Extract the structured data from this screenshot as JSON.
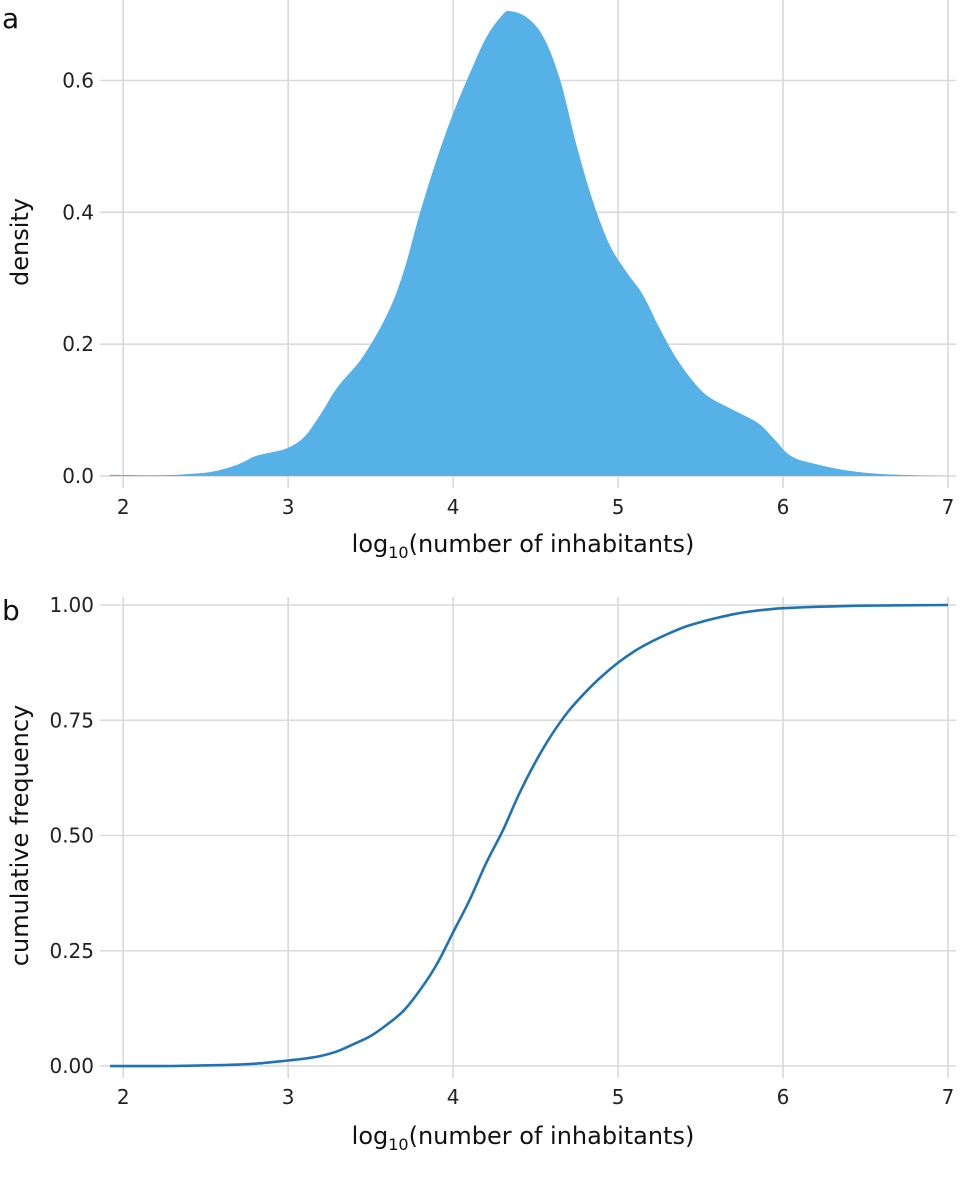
{
  "chart_data": [
    {
      "panel_label": "a",
      "type": "area",
      "xlabel_main": "log",
      "xlabel_sub": "10",
      "xlabel_rest": "(number of inhabitants)",
      "ylabel": "density",
      "xlim": [
        1.92,
        7.0
      ],
      "ylim": [
        0,
        0.71
      ],
      "x_ticks": [
        2,
        3,
        4,
        5,
        6,
        7
      ],
      "x_tick_labels": [
        "2",
        "3",
        "4",
        "5",
        "6",
        "7"
      ],
      "y_ticks": [
        0.0,
        0.2,
        0.4,
        0.6
      ],
      "y_tick_labels": [
        "0.0",
        "0.2",
        "0.4",
        "0.6"
      ],
      "grid": true,
      "fill_color": "#56B1E6",
      "x": [
        1.92,
        2.2,
        2.4,
        2.55,
        2.7,
        2.8,
        2.9,
        3.0,
        3.1,
        3.2,
        3.3,
        3.45,
        3.6,
        3.7,
        3.8,
        3.9,
        4.0,
        4.1,
        4.2,
        4.3,
        4.35,
        4.45,
        4.55,
        4.65,
        4.75,
        4.85,
        4.95,
        5.05,
        5.15,
        5.25,
        5.35,
        5.45,
        5.55,
        5.7,
        5.85,
        5.95,
        6.05,
        6.2,
        6.4,
        6.6,
        6.8,
        7.0
      ],
      "y": [
        0.002,
        0.001,
        0.003,
        0.007,
        0.018,
        0.03,
        0.036,
        0.043,
        0.06,
        0.095,
        0.135,
        0.18,
        0.245,
        0.31,
        0.4,
        0.48,
        0.55,
        0.61,
        0.665,
        0.7,
        0.705,
        0.695,
        0.665,
        0.6,
        0.5,
        0.415,
        0.35,
        0.31,
        0.275,
        0.225,
        0.18,
        0.145,
        0.12,
        0.1,
        0.08,
        0.055,
        0.03,
        0.018,
        0.008,
        0.003,
        0.001,
        0.0
      ]
    },
    {
      "panel_label": "b",
      "type": "line",
      "xlabel_main": "log",
      "xlabel_sub": "10",
      "xlabel_rest": "(number of inhabitants)",
      "ylabel": "cumulative frequency",
      "xlim": [
        1.92,
        7.0
      ],
      "ylim": [
        0,
        1.0
      ],
      "x_ticks": [
        2,
        3,
        4,
        5,
        6,
        7
      ],
      "x_tick_labels": [
        "2",
        "3",
        "4",
        "5",
        "6",
        "7"
      ],
      "y_ticks": [
        0.0,
        0.25,
        0.5,
        0.75,
        1.0
      ],
      "y_tick_labels": [
        "0.00",
        "0.25",
        "0.50",
        "0.75",
        "1.00"
      ],
      "grid": true,
      "line_color": "#1F72B3",
      "x": [
        1.92,
        2.3,
        2.6,
        2.8,
        3.0,
        3.1,
        3.2,
        3.3,
        3.4,
        3.5,
        3.6,
        3.7,
        3.8,
        3.9,
        4.0,
        4.1,
        4.2,
        4.3,
        4.4,
        4.5,
        4.6,
        4.7,
        4.8,
        4.9,
        5.0,
        5.1,
        5.2,
        5.3,
        5.4,
        5.5,
        5.6,
        5.7,
        5.8,
        5.9,
        6.0,
        6.2,
        6.4,
        6.6,
        7.0
      ],
      "y": [
        0.0,
        0.0,
        0.002,
        0.005,
        0.012,
        0.016,
        0.022,
        0.032,
        0.048,
        0.065,
        0.09,
        0.12,
        0.165,
        0.22,
        0.29,
        0.36,
        0.44,
        0.51,
        0.59,
        0.66,
        0.72,
        0.77,
        0.81,
        0.845,
        0.875,
        0.9,
        0.92,
        0.937,
        0.952,
        0.963,
        0.972,
        0.98,
        0.986,
        0.99,
        0.993,
        0.996,
        0.998,
        0.999,
        1.0
      ]
    }
  ]
}
